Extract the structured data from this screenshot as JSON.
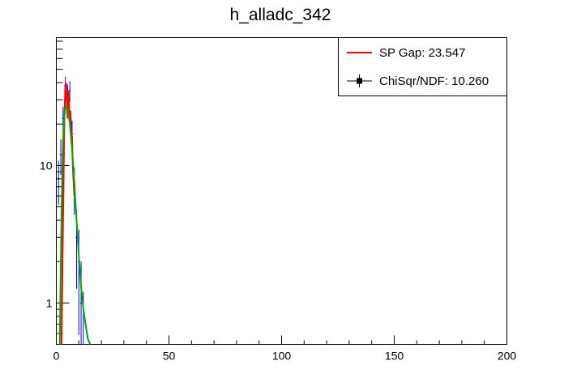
{
  "chart_data": {
    "type": "line",
    "title": "h_alladc_342",
    "xlabel": "",
    "ylabel": "",
    "xlim": [
      0,
      200
    ],
    "ylim": [
      0.5,
      85
    ],
    "y_scale": "log",
    "x_ticks": [
      "0",
      "50",
      "100",
      "150",
      "200"
    ],
    "y_ticks": [
      {
        "value": 1,
        "label": "1"
      },
      {
        "value": 10,
        "label": "10"
      }
    ],
    "grid": false,
    "legend": {
      "placement": "top-right",
      "entries": [
        {
          "label": "SP Gap: 23.547",
          "color": "#ff0000",
          "marker": "line"
        },
        {
          "label": "ChiSqr/NDF: 10.260",
          "color": "#000000",
          "marker": "square"
        }
      ]
    },
    "series": [
      {
        "color": "#0000ff",
        "style": "histogram",
        "x": [
          1,
          2,
          3,
          4,
          5,
          6,
          7,
          8,
          9,
          10,
          11,
          12
        ],
        "y": [
          8,
          12,
          22,
          38,
          33,
          35,
          17,
          7,
          3,
          2,
          1,
          0.5
        ]
      },
      {
        "color": "#ff0000",
        "style": "curve",
        "x": [
          2.3,
          2.6,
          3.0,
          3.3,
          3.6,
          4.0,
          4.3,
          4.6,
          5.0,
          5.3,
          5.6,
          6.0,
          6.3,
          6.6,
          7.0,
          7.3,
          7.6,
          8.0
        ],
        "y": [
          0.5,
          1.2,
          4,
          10,
          22,
          38,
          40,
          30,
          22,
          35,
          30,
          20,
          25,
          18,
          16,
          10,
          8,
          6
        ]
      },
      {
        "color": "#00aa00",
        "style": "curve",
        "x": [
          1.5,
          2.0,
          2.5,
          3.0,
          3.5,
          4.0,
          4.5,
          5.0,
          6.0,
          7.0,
          8.0,
          9.0,
          10.0,
          11.0,
          12.0,
          13.0,
          14.0,
          15.0
        ],
        "y": [
          0.5,
          2,
          7,
          15,
          22,
          26,
          27,
          26,
          20,
          13,
          7.5,
          4,
          2.2,
          1.3,
          0.9,
          0.7,
          0.55,
          0.5
        ]
      }
    ]
  }
}
